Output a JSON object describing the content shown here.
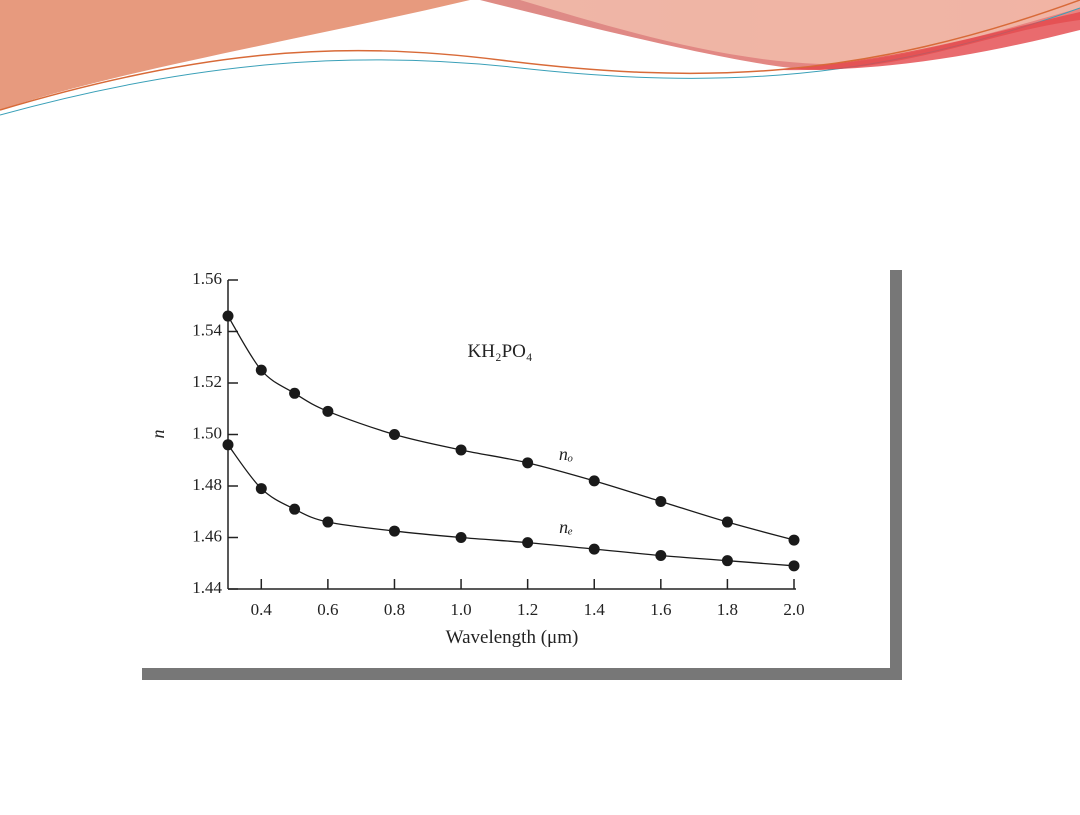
{
  "chart_data": {
    "type": "line",
    "title": "KH₂PO₄",
    "x_label": "Wavelength (μm)",
    "y_label": "n",
    "xlim": [
      0.3,
      2.0
    ],
    "ylim": [
      1.44,
      1.56
    ],
    "xticks": [
      0.4,
      0.6,
      0.8,
      {
        "value": 1.0,
        "label": "1.0"
      },
      1.2,
      1.4,
      1.6,
      1.8,
      {
        "value": 2.0,
        "label": "2.0"
      }
    ],
    "yticks": [
      1.44,
      1.46,
      1.48,
      {
        "value": 1.5,
        "label": "1.50"
      },
      1.52,
      1.54,
      1.56
    ],
    "series": [
      {
        "name": "nₒ",
        "color": "#1a1a1a",
        "x": [
          0.3,
          0.4,
          0.5,
          0.6,
          0.8,
          1.0,
          1.2,
          1.4,
          1.6,
          1.8,
          2.0
        ],
        "values": [
          1.546,
          1.525,
          1.516,
          1.509,
          1.5,
          1.494,
          1.489,
          1.482,
          1.474,
          1.466,
          1.459
        ]
      },
      {
        "name": "nₑ",
        "color": "#1a1a1a",
        "x": [
          0.3,
          0.4,
          0.5,
          0.6,
          0.8,
          1.0,
          1.2,
          1.4,
          1.6,
          1.8,
          2.0
        ],
        "values": [
          1.496,
          1.479,
          1.471,
          1.466,
          1.4625,
          1.46,
          1.458,
          1.4555,
          1.453,
          1.451,
          1.449
        ]
      }
    ]
  }
}
